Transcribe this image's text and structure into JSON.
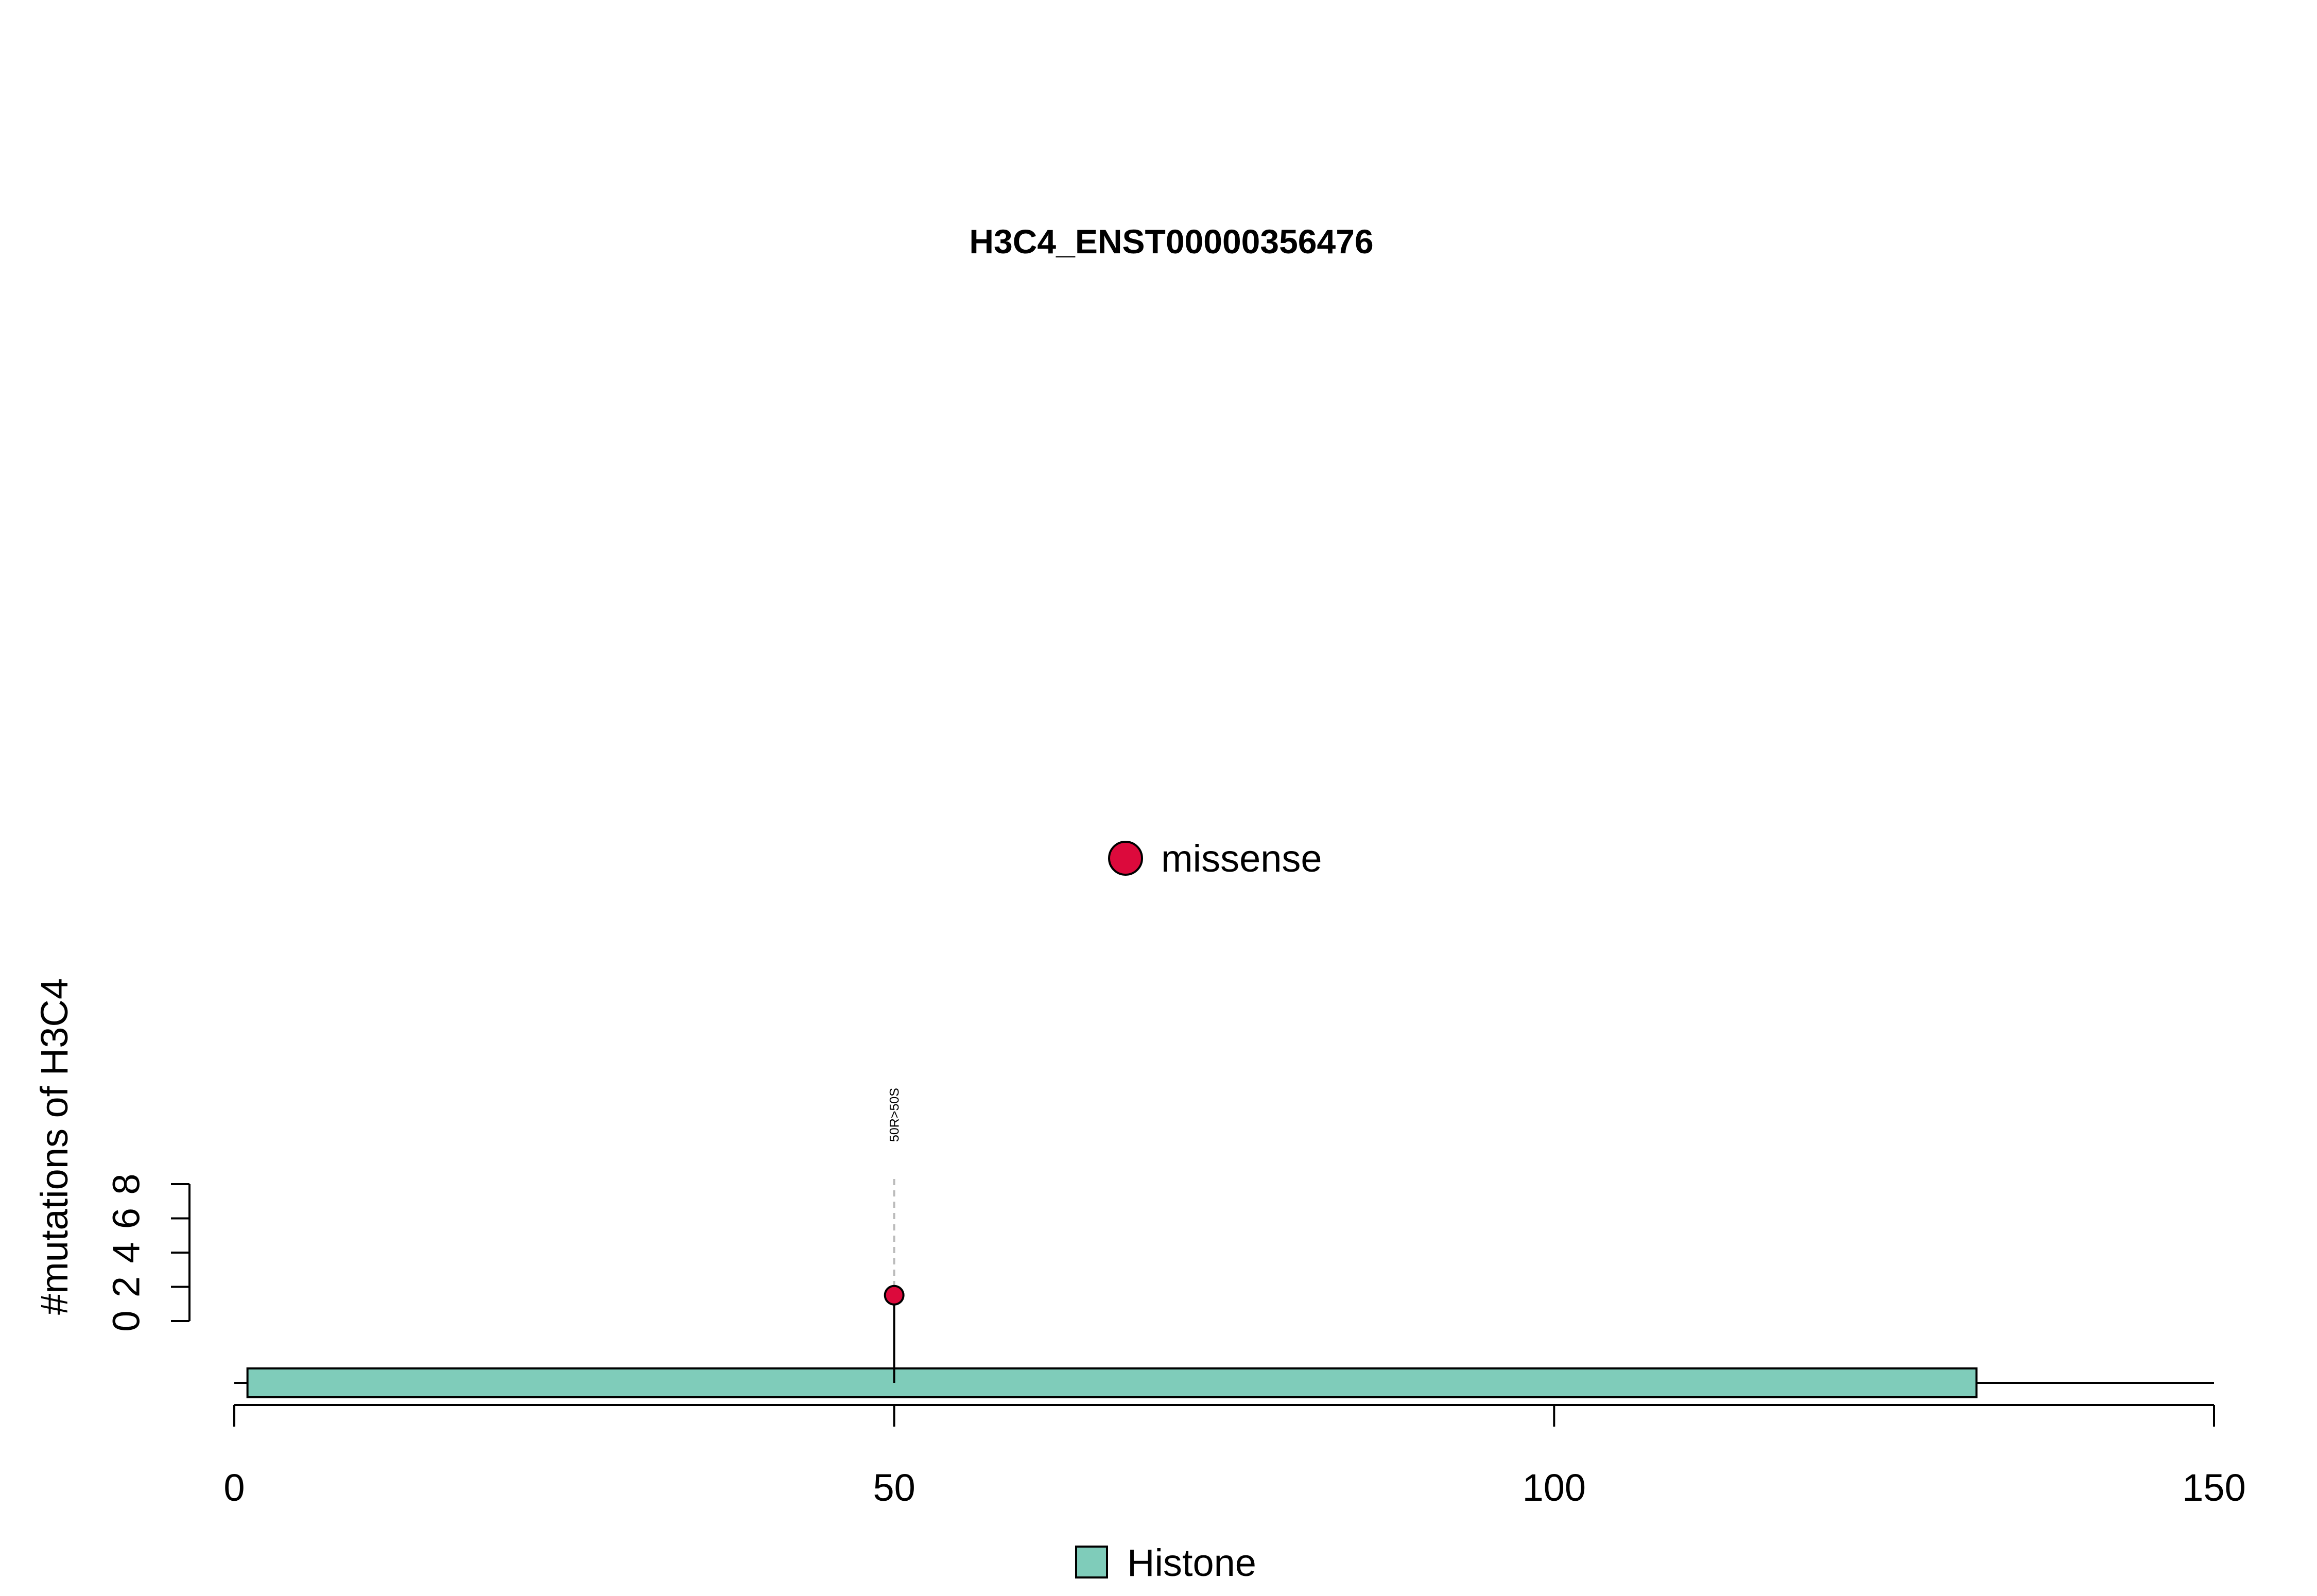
{
  "chart_data": {
    "type": "scatter",
    "subtype": "lollipop",
    "title": "H3C4_ENST00000356476",
    "ylabel": "#mutations of H3C4",
    "xlabel": "",
    "xlim": [
      0,
      150
    ],
    "ylim": [
      0,
      8
    ],
    "x_ticks": [
      "0",
      "50",
      "100",
      "150"
    ],
    "y_ticks": [
      "0",
      "2",
      "4",
      "6",
      "8"
    ],
    "protein_length": 150,
    "domains": [
      {
        "name": "Histone",
        "start": 1,
        "end": 132,
        "color": "#7fccba"
      }
    ],
    "mutations": [
      {
        "position": 50,
        "count": 1,
        "label": "50R>50S",
        "type": "missense"
      }
    ],
    "legend_top": [
      {
        "label": "missense",
        "color": "#dc0a3c"
      }
    ],
    "legend_bottom": [
      {
        "label": "Histone",
        "color": "#7fccba"
      }
    ],
    "grid": false
  }
}
